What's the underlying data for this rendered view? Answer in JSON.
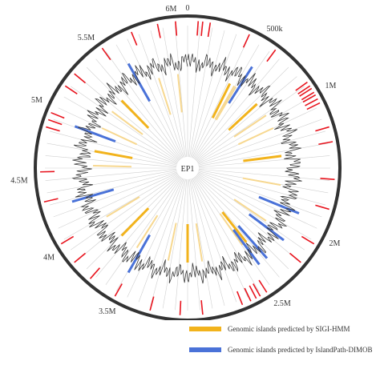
{
  "center_label": "EP1",
  "position_labels": [
    {
      "text": "0",
      "at": 0
    },
    {
      "text": "6M",
      "at": 6.0
    },
    {
      "text": "500k",
      "at": 0.5
    },
    {
      "text": "1M",
      "at": 1.0
    },
    {
      "text": "2M",
      "at": 2.0
    },
    {
      "text": "2.5M",
      "at": 2.5
    },
    {
      "text": "3.5M",
      "at": 3.5
    },
    {
      "text": "4M",
      "at": 4.0
    },
    {
      "text": "4.5M",
      "at": 4.5
    },
    {
      "text": "5M",
      "at": 5.0
    },
    {
      "text": "5.5M",
      "at": 5.5
    }
  ],
  "genome_length_mb": 6.1,
  "colors": {
    "backbone": "#333333",
    "red_track": "#e8141e",
    "sigi": "#f2b31c",
    "sigi_pale": "#f7d890",
    "islandpath": "#4a72d8",
    "gc_line": "#3a3a3a",
    "spoke": "#d0d0d0"
  },
  "red_track_mb": [
    0.07,
    0.1,
    0.15,
    0.42,
    0.62,
    0.92,
    0.95,
    0.97,
    1.0,
    1.02,
    1.05,
    1.08,
    1.25,
    1.35,
    1.6,
    1.8,
    2.05,
    2.2,
    2.5,
    2.55,
    2.58,
    2.62,
    2.68,
    2.95,
    3.1,
    3.3,
    3.55,
    3.75,
    3.9,
    4.05,
    4.35,
    4.55,
    4.85,
    4.9,
    4.95,
    5.15,
    5.25,
    5.5,
    5.72,
    5.9,
    6.02
  ],
  "sigi_islands_mb": [
    0.45,
    0.5,
    0.52,
    0.8,
    0.95,
    1.1,
    1.4,
    1.7,
    2.1,
    2.4,
    2.45,
    2.9,
    3.05,
    3.25,
    3.6,
    3.8,
    4.05,
    4.6,
    4.75,
    5.0,
    5.2,
    5.35,
    5.8,
    6.0
  ],
  "islandpath_islands_mb": [
    0.55,
    1.9,
    2.15,
    2.35,
    2.43,
    3.55,
    4.3,
    4.92,
    5.6
  ],
  "legend": {
    "sigi_label": "Genomic islands predicted by SIGI-HMM",
    "islandpath_label": "Genomic islands predicted by IslandPath-DIMOB"
  }
}
